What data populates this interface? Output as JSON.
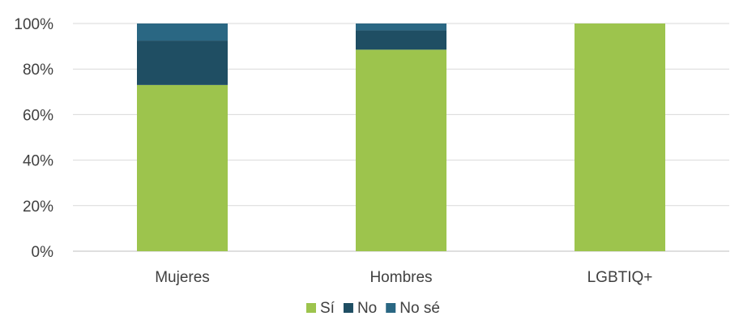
{
  "chart_data": {
    "type": "bar",
    "stacked": true,
    "normalized": true,
    "categories": [
      "Mujeres",
      "Hombres",
      "LGBTIQ+"
    ],
    "series": [
      {
        "name": "Sí",
        "values": [
          73,
          88.5,
          100
        ],
        "color": "#9DC44D"
      },
      {
        "name": "No",
        "values": [
          19.5,
          8.5,
          0
        ],
        "color": "#1F4E63"
      },
      {
        "name": "No sé",
        "values": [
          7.5,
          3,
          0
        ],
        "color": "#2A6783"
      }
    ],
    "yticks": [
      "0%",
      "20%",
      "40%",
      "60%",
      "80%",
      "100%"
    ],
    "ylim": [
      0,
      100
    ],
    "grid": true,
    "legend_position": "bottom",
    "xlabel": "",
    "ylabel": ""
  }
}
